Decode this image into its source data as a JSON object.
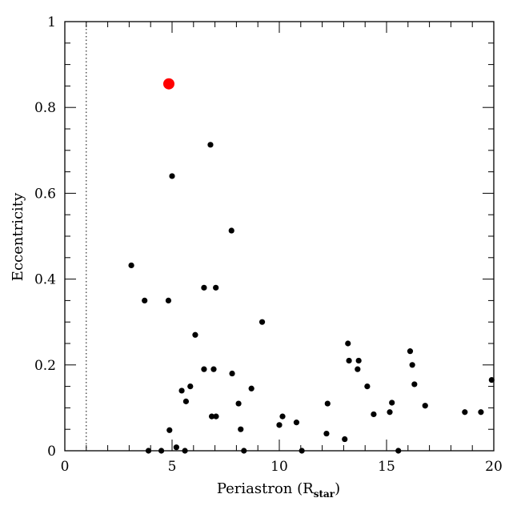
{
  "chart_data": {
    "type": "scatter",
    "title": "",
    "xlabel": "Periastron (R",
    "xlabel_subscript": "star",
    "xlabel_close": ")",
    "ylabel": "Eccentricity",
    "xlim": [
      0,
      20
    ],
    "ylim": [
      0,
      1
    ],
    "x_ticks": [
      "0",
      "5",
      "10",
      "15",
      "20"
    ],
    "y_ticks": [
      "0",
      "0.2",
      "0.4",
      "0.6",
      "0.8",
      "1"
    ],
    "grid": false,
    "reference_line_x": 1,
    "point_color": "#000000",
    "highlight_color": "#ff0000",
    "highlight": {
      "x": 4.85,
      "y": 0.855
    },
    "points": [
      {
        "x": 3.1,
        "y": 0.432
      },
      {
        "x": 3.72,
        "y": 0.35
      },
      {
        "x": 4.83,
        "y": 0.35
      },
      {
        "x": 5.0,
        "y": 0.64
      },
      {
        "x": 6.79,
        "y": 0.713
      },
      {
        "x": 7.77,
        "y": 0.513
      },
      {
        "x": 6.49,
        "y": 0.38
      },
      {
        "x": 7.04,
        "y": 0.38
      },
      {
        "x": 6.08,
        "y": 0.27
      },
      {
        "x": 9.2,
        "y": 0.3
      },
      {
        "x": 6.49,
        "y": 0.19
      },
      {
        "x": 6.94,
        "y": 0.19
      },
      {
        "x": 7.8,
        "y": 0.18
      },
      {
        "x": 5.85,
        "y": 0.15
      },
      {
        "x": 5.45,
        "y": 0.14
      },
      {
        "x": 5.65,
        "y": 0.115
      },
      {
        "x": 8.1,
        "y": 0.11
      },
      {
        "x": 8.7,
        "y": 0.145
      },
      {
        "x": 6.85,
        "y": 0.08
      },
      {
        "x": 7.05,
        "y": 0.08
      },
      {
        "x": 8.2,
        "y": 0.05
      },
      {
        "x": 4.88,
        "y": 0.048
      },
      {
        "x": 5.2,
        "y": 0.008
      },
      {
        "x": 3.9,
        "y": 0.0
      },
      {
        "x": 4.5,
        "y": 0.0
      },
      {
        "x": 5.6,
        "y": 0.0
      },
      {
        "x": 8.35,
        "y": 0.0
      },
      {
        "x": 10.0,
        "y": 0.06
      },
      {
        "x": 10.15,
        "y": 0.08
      },
      {
        "x": 10.8,
        "y": 0.066
      },
      {
        "x": 11.05,
        "y": 0.0
      },
      {
        "x": 12.2,
        "y": 0.04
      },
      {
        "x": 12.25,
        "y": 0.11
      },
      {
        "x": 13.05,
        "y": 0.027
      },
      {
        "x": 13.2,
        "y": 0.25
      },
      {
        "x": 13.25,
        "y": 0.21
      },
      {
        "x": 13.7,
        "y": 0.21
      },
      {
        "x": 13.65,
        "y": 0.19
      },
      {
        "x": 14.1,
        "y": 0.15
      },
      {
        "x": 14.4,
        "y": 0.085
      },
      {
        "x": 15.15,
        "y": 0.09
      },
      {
        "x": 15.25,
        "y": 0.112
      },
      {
        "x": 15.55,
        "y": 0.0
      },
      {
        "x": 16.1,
        "y": 0.232
      },
      {
        "x": 16.2,
        "y": 0.2
      },
      {
        "x": 16.3,
        "y": 0.155
      },
      {
        "x": 16.8,
        "y": 0.105
      },
      {
        "x": 18.65,
        "y": 0.09
      },
      {
        "x": 19.4,
        "y": 0.09
      },
      {
        "x": 19.9,
        "y": 0.165
      }
    ]
  }
}
